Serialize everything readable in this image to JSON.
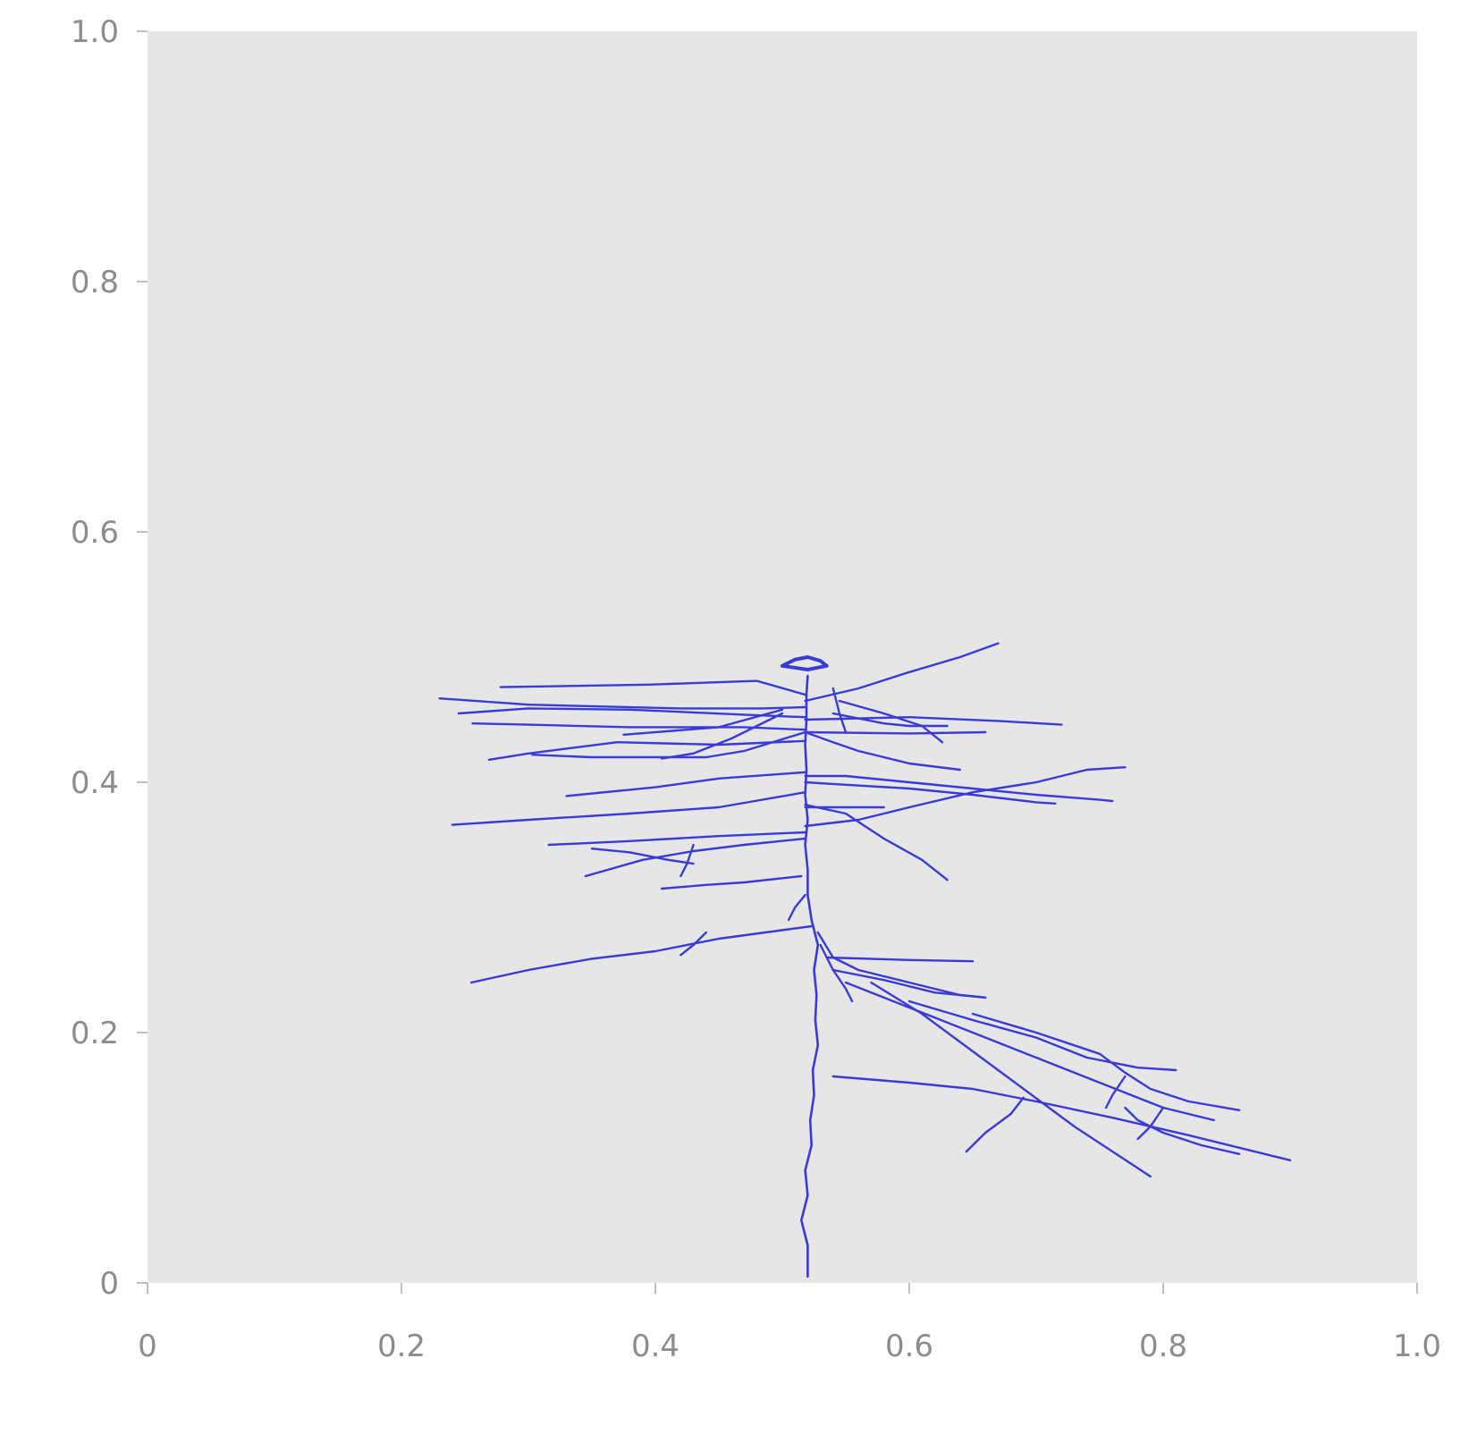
{
  "chart_data": {
    "type": "line",
    "title": "",
    "xlabel": "",
    "ylabel": "",
    "xlim": [
      0,
      1.0
    ],
    "ylim": [
      0,
      1.0
    ],
    "grid": false,
    "x_ticks": [
      {
        "value": 0,
        "label": "0"
      },
      {
        "value": 0.2,
        "label": "0.2"
      },
      {
        "value": 0.4,
        "label": "0.4"
      },
      {
        "value": 0.6,
        "label": "0.6"
      },
      {
        "value": 0.8,
        "label": "0.8"
      },
      {
        "value": 1.0,
        "label": "1.0"
      }
    ],
    "y_ticks": [
      {
        "value": 0,
        "label": "0"
      },
      {
        "value": 0.2,
        "label": "0.2"
      },
      {
        "value": 0.4,
        "label": "0.4"
      },
      {
        "value": 0.6,
        "label": "0.6"
      },
      {
        "value": 0.8,
        "label": "0.8"
      },
      {
        "value": 1.0,
        "label": "1.0"
      }
    ],
    "colors": {
      "trace": "#3a3ad6",
      "plot_background": "#e6e6e6",
      "tick_text": "#8c8c8c"
    },
    "series": [
      {
        "points": [
          [
            0.52,
            0.005
          ],
          [
            0.52,
            0.03
          ],
          [
            0.515,
            0.05
          ],
          [
            0.52,
            0.07
          ],
          [
            0.518,
            0.09
          ],
          [
            0.523,
            0.11
          ],
          [
            0.522,
            0.13
          ],
          [
            0.525,
            0.15
          ],
          [
            0.524,
            0.17
          ],
          [
            0.528,
            0.19
          ],
          [
            0.526,
            0.21
          ],
          [
            0.527,
            0.23
          ],
          [
            0.525,
            0.25
          ],
          [
            0.528,
            0.27
          ],
          [
            0.523,
            0.29
          ],
          [
            0.52,
            0.31
          ],
          [
            0.52,
            0.33
          ],
          [
            0.518,
            0.35
          ],
          [
            0.52,
            0.37
          ],
          [
            0.518,
            0.39
          ],
          [
            0.519,
            0.41
          ],
          [
            0.518,
            0.43
          ],
          [
            0.519,
            0.45
          ],
          [
            0.519,
            0.47
          ],
          [
            0.52,
            0.485
          ]
        ]
      },
      {
        "points": [
          [
            0.5,
            0.493
          ],
          [
            0.51,
            0.498
          ],
          [
            0.52,
            0.5
          ],
          [
            0.53,
            0.497
          ],
          [
            0.535,
            0.493
          ],
          [
            0.52,
            0.49
          ],
          [
            0.5,
            0.493
          ]
        ]
      },
      {
        "points": [
          [
            0.518,
            0.47
          ],
          [
            0.48,
            0.481
          ],
          [
            0.395,
            0.478
          ],
          [
            0.278,
            0.476
          ]
        ]
      },
      {
        "points": [
          [
            0.518,
            0.46
          ],
          [
            0.485,
            0.459
          ],
          [
            0.42,
            0.459
          ],
          [
            0.3,
            0.462
          ],
          [
            0.23,
            0.467
          ]
        ]
      },
      {
        "points": [
          [
            0.518,
            0.452
          ],
          [
            0.47,
            0.454
          ],
          [
            0.38,
            0.458
          ],
          [
            0.3,
            0.459
          ],
          [
            0.245,
            0.455
          ]
        ]
      },
      {
        "points": [
          [
            0.518,
            0.442
          ],
          [
            0.47,
            0.444
          ],
          [
            0.38,
            0.444
          ],
          [
            0.3,
            0.446
          ],
          [
            0.256,
            0.447
          ]
        ]
      },
      {
        "points": [
          [
            0.518,
            0.433
          ],
          [
            0.45,
            0.43
          ],
          [
            0.37,
            0.432
          ],
          [
            0.3,
            0.423
          ],
          [
            0.269,
            0.418
          ]
        ]
      },
      {
        "points": [
          [
            0.5,
            0.458
          ],
          [
            0.45,
            0.444
          ],
          [
            0.375,
            0.438
          ]
        ]
      },
      {
        "points": [
          [
            0.518,
            0.44
          ],
          [
            0.47,
            0.425
          ],
          [
            0.44,
            0.42
          ],
          [
            0.35,
            0.42
          ],
          [
            0.303,
            0.422
          ]
        ]
      },
      {
        "points": [
          [
            0.5,
            0.455
          ],
          [
            0.46,
            0.435
          ],
          [
            0.43,
            0.423
          ],
          [
            0.405,
            0.419
          ]
        ]
      },
      {
        "points": [
          [
            0.518,
            0.45
          ],
          [
            0.6,
            0.452
          ],
          [
            0.67,
            0.449
          ],
          [
            0.72,
            0.446
          ]
        ]
      },
      {
        "points": [
          [
            0.518,
            0.44
          ],
          [
            0.6,
            0.439
          ],
          [
            0.66,
            0.44
          ]
        ]
      },
      {
        "points": [
          [
            0.518,
            0.465
          ],
          [
            0.56,
            0.475
          ],
          [
            0.6,
            0.488
          ],
          [
            0.64,
            0.5
          ],
          [
            0.67,
            0.511
          ]
        ]
      },
      {
        "points": [
          [
            0.545,
            0.465
          ],
          [
            0.58,
            0.455
          ],
          [
            0.61,
            0.445
          ],
          [
            0.626,
            0.432
          ]
        ]
      },
      {
        "points": [
          [
            0.54,
            0.475
          ],
          [
            0.545,
            0.455
          ],
          [
            0.55,
            0.44
          ]
        ]
      },
      {
        "points": [
          [
            0.54,
            0.455
          ],
          [
            0.58,
            0.447
          ],
          [
            0.6,
            0.445
          ],
          [
            0.63,
            0.445
          ]
        ]
      },
      {
        "points": [
          [
            0.518,
            0.44
          ],
          [
            0.54,
            0.432
          ],
          [
            0.56,
            0.425
          ],
          [
            0.6,
            0.415
          ],
          [
            0.64,
            0.41
          ]
        ]
      },
      {
        "points": [
          [
            0.518,
            0.405
          ],
          [
            0.55,
            0.405
          ],
          [
            0.6,
            0.4
          ],
          [
            0.65,
            0.395
          ],
          [
            0.7,
            0.39
          ],
          [
            0.75,
            0.386
          ],
          [
            0.76,
            0.385
          ]
        ]
      },
      {
        "points": [
          [
            0.518,
            0.4
          ],
          [
            0.55,
            0.398
          ],
          [
            0.6,
            0.395
          ],
          [
            0.65,
            0.39
          ],
          [
            0.7,
            0.384
          ],
          [
            0.715,
            0.383
          ]
        ]
      },
      {
        "points": [
          [
            0.518,
            0.408
          ],
          [
            0.45,
            0.403
          ],
          [
            0.4,
            0.396
          ],
          [
            0.33,
            0.389
          ]
        ]
      },
      {
        "points": [
          [
            0.518,
            0.392
          ],
          [
            0.45,
            0.38
          ],
          [
            0.38,
            0.375
          ],
          [
            0.3,
            0.37
          ],
          [
            0.24,
            0.366
          ]
        ]
      },
      {
        "points": [
          [
            0.518,
            0.382
          ],
          [
            0.55,
            0.375
          ],
          [
            0.58,
            0.355
          ],
          [
            0.61,
            0.338
          ],
          [
            0.63,
            0.322
          ]
        ]
      },
      {
        "points": [
          [
            0.518,
            0.38
          ],
          [
            0.58,
            0.38
          ]
        ]
      },
      {
        "points": [
          [
            0.518,
            0.365
          ],
          [
            0.56,
            0.37
          ],
          [
            0.6,
            0.38
          ],
          [
            0.65,
            0.392
          ],
          [
            0.7,
            0.4
          ],
          [
            0.74,
            0.41
          ],
          [
            0.77,
            0.412
          ]
        ]
      },
      {
        "points": [
          [
            0.518,
            0.36
          ],
          [
            0.45,
            0.357
          ],
          [
            0.38,
            0.353
          ],
          [
            0.316,
            0.35
          ]
        ]
      },
      {
        "points": [
          [
            0.518,
            0.355
          ],
          [
            0.47,
            0.35
          ],
          [
            0.43,
            0.345
          ],
          [
            0.39,
            0.338
          ],
          [
            0.345,
            0.325
          ]
        ]
      },
      {
        "points": [
          [
            0.35,
            0.347
          ],
          [
            0.38,
            0.344
          ],
          [
            0.41,
            0.338
          ],
          [
            0.43,
            0.335
          ]
        ]
      },
      {
        "points": [
          [
            0.43,
            0.35
          ],
          [
            0.425,
            0.335
          ],
          [
            0.42,
            0.325
          ]
        ]
      },
      {
        "points": [
          [
            0.515,
            0.325
          ],
          [
            0.47,
            0.32
          ],
          [
            0.44,
            0.318
          ],
          [
            0.405,
            0.315
          ]
        ]
      },
      {
        "points": [
          [
            0.518,
            0.31
          ],
          [
            0.51,
            0.3
          ],
          [
            0.505,
            0.29
          ]
        ]
      },
      {
        "points": [
          [
            0.523,
            0.285
          ],
          [
            0.45,
            0.275
          ],
          [
            0.4,
            0.265
          ],
          [
            0.35,
            0.259
          ],
          [
            0.3,
            0.25
          ],
          [
            0.255,
            0.24
          ]
        ]
      },
      {
        "points": [
          [
            0.44,
            0.28
          ],
          [
            0.43,
            0.27
          ],
          [
            0.42,
            0.262
          ]
        ]
      },
      {
        "points": [
          [
            0.528,
            0.28
          ],
          [
            0.54,
            0.26
          ],
          [
            0.56,
            0.25
          ],
          [
            0.6,
            0.24
          ],
          [
            0.64,
            0.23
          ],
          [
            0.66,
            0.228
          ]
        ]
      },
      {
        "points": [
          [
            0.535,
            0.26
          ],
          [
            0.6,
            0.258
          ],
          [
            0.65,
            0.257
          ]
        ]
      },
      {
        "points": [
          [
            0.53,
            0.27
          ],
          [
            0.54,
            0.25
          ],
          [
            0.55,
            0.235
          ],
          [
            0.555,
            0.225
          ]
        ]
      },
      {
        "points": [
          [
            0.54,
            0.25
          ],
          [
            0.58,
            0.242
          ],
          [
            0.62,
            0.232
          ],
          [
            0.66,
            0.228
          ]
        ]
      },
      {
        "points": [
          [
            0.55,
            0.24
          ],
          [
            0.6,
            0.22
          ],
          [
            0.65,
            0.2
          ],
          [
            0.7,
            0.18
          ],
          [
            0.75,
            0.16
          ],
          [
            0.8,
            0.14
          ],
          [
            0.84,
            0.13
          ]
        ]
      },
      {
        "points": [
          [
            0.57,
            0.24
          ],
          [
            0.61,
            0.215
          ],
          [
            0.65,
            0.185
          ],
          [
            0.69,
            0.155
          ],
          [
            0.73,
            0.125
          ],
          [
            0.76,
            0.105
          ],
          [
            0.79,
            0.085
          ]
        ]
      },
      {
        "points": [
          [
            0.6,
            0.225
          ],
          [
            0.65,
            0.21
          ],
          [
            0.7,
            0.196
          ],
          [
            0.74,
            0.18
          ],
          [
            0.78,
            0.172
          ],
          [
            0.81,
            0.17
          ]
        ]
      },
      {
        "points": [
          [
            0.65,
            0.215
          ],
          [
            0.7,
            0.2
          ],
          [
            0.75,
            0.183
          ],
          [
            0.77,
            0.168
          ],
          [
            0.79,
            0.155
          ],
          [
            0.82,
            0.145
          ],
          [
            0.86,
            0.138
          ]
        ]
      },
      {
        "points": [
          [
            0.54,
            0.165
          ],
          [
            0.6,
            0.16
          ],
          [
            0.65,
            0.155
          ],
          [
            0.7,
            0.145
          ],
          [
            0.76,
            0.132
          ],
          [
            0.82,
            0.118
          ],
          [
            0.86,
            0.108
          ],
          [
            0.9,
            0.098
          ]
        ]
      },
      {
        "points": [
          [
            0.69,
            0.148
          ],
          [
            0.68,
            0.135
          ],
          [
            0.66,
            0.12
          ],
          [
            0.645,
            0.105
          ]
        ]
      },
      {
        "points": [
          [
            0.77,
            0.165
          ],
          [
            0.76,
            0.15
          ],
          [
            0.755,
            0.14
          ]
        ]
      },
      {
        "points": [
          [
            0.77,
            0.14
          ],
          [
            0.78,
            0.13
          ],
          [
            0.8,
            0.12
          ],
          [
            0.83,
            0.11
          ],
          [
            0.86,
            0.103
          ]
        ]
      },
      {
        "points": [
          [
            0.8,
            0.14
          ],
          [
            0.79,
            0.125
          ],
          [
            0.78,
            0.115
          ]
        ]
      }
    ]
  }
}
